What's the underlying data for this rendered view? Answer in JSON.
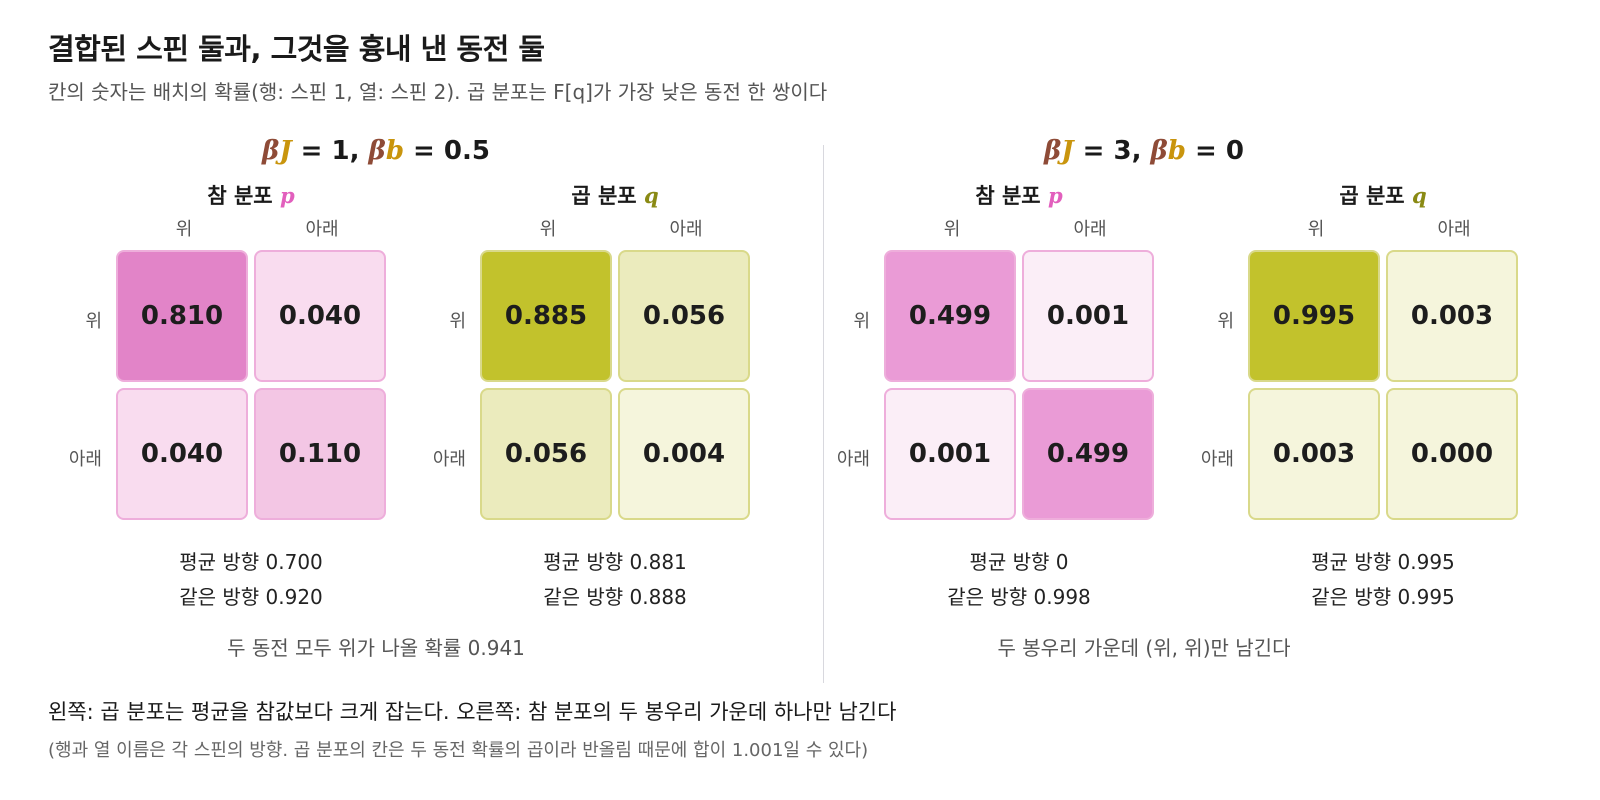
{
  "title": "결합된 스핀 둘과, 그것을 흉내 낸 동전 둘",
  "subtitle": "칸의 숫자는 배치의 확률(행: 스핀 1, 열: 스핀 2). 곱 분포는 F[q]가 가장 낮은 동전 한 쌍이다",
  "colors": {
    "p_strong": "#e284c8",
    "p_mid": "#f3c6e4",
    "p_light": "#f9dcef",
    "p_border": "#eeaedb",
    "q_strong": "#c2c22c",
    "q_mid": "#ebebbd",
    "q_light": "#f5f5dc",
    "q_border": "#d9d98a"
  },
  "panels": [
    {
      "heading": {
        "beta1": "β",
        "J": "J",
        "eq1": " = 1, ",
        "beta2": "β",
        "b": "b",
        "eq2": " = 0.5"
      },
      "matrices": [
        {
          "name": "참 분포",
          "symbol": "p",
          "col_labels": [
            "위",
            "아래"
          ],
          "row_labels": [
            "위",
            "아래"
          ],
          "cells": [
            [
              "0.810",
              "0.040"
            ],
            [
              "0.040",
              "0.110"
            ]
          ],
          "stats": [
            "평균 방향 0.700",
            "같은 방향 0.920"
          ]
        },
        {
          "name": "곱 분포",
          "symbol": "q",
          "col_labels": [
            "위",
            "아래"
          ],
          "row_labels": [
            "위",
            "아래"
          ],
          "cells": [
            [
              "0.885",
              "0.056"
            ],
            [
              "0.056",
              "0.004"
            ]
          ],
          "stats": [
            "평균 방향 0.881",
            "같은 방향 0.888"
          ]
        }
      ],
      "note": "두 동전 모두 위가 나올 확률 0.941"
    },
    {
      "heading": {
        "beta1": "β",
        "J": "J",
        "eq1": " = 3, ",
        "beta2": "β",
        "b": "b",
        "eq2": " = 0"
      },
      "matrices": [
        {
          "name": "참 분포",
          "symbol": "p",
          "col_labels": [
            "위",
            "아래"
          ],
          "row_labels": [
            "위",
            "아래"
          ],
          "cells": [
            [
              "0.499",
              "0.001"
            ],
            [
              "0.001",
              "0.499"
            ]
          ],
          "stats": [
            "평균 방향 0",
            "같은 방향 0.998"
          ]
        },
        {
          "name": "곱 분포",
          "symbol": "q",
          "col_labels": [
            "위",
            "아래"
          ],
          "row_labels": [
            "위",
            "아래"
          ],
          "cells": [
            [
              "0.995",
              "0.003"
            ],
            [
              "0.003",
              "0.000"
            ]
          ],
          "stats": [
            "평균 방향 0.995",
            "같은 방향 0.995"
          ]
        }
      ],
      "note": "두 봉우리 가운데 (위, 위)만 남긴다"
    }
  ],
  "footer": {
    "line1": "왼쪽: 곱 분포는 평균을 참값보다 크게 잡는다. 오른쪽: 참 분포의 두 봉우리 가운데 하나만 남긴다",
    "line2": "(행과 열 이름은 각 스핀의 방향. 곱 분포의 칸은 두 동전 확률의 곱이라 반올림 때문에 합이 1.001일 수 있다)"
  }
}
